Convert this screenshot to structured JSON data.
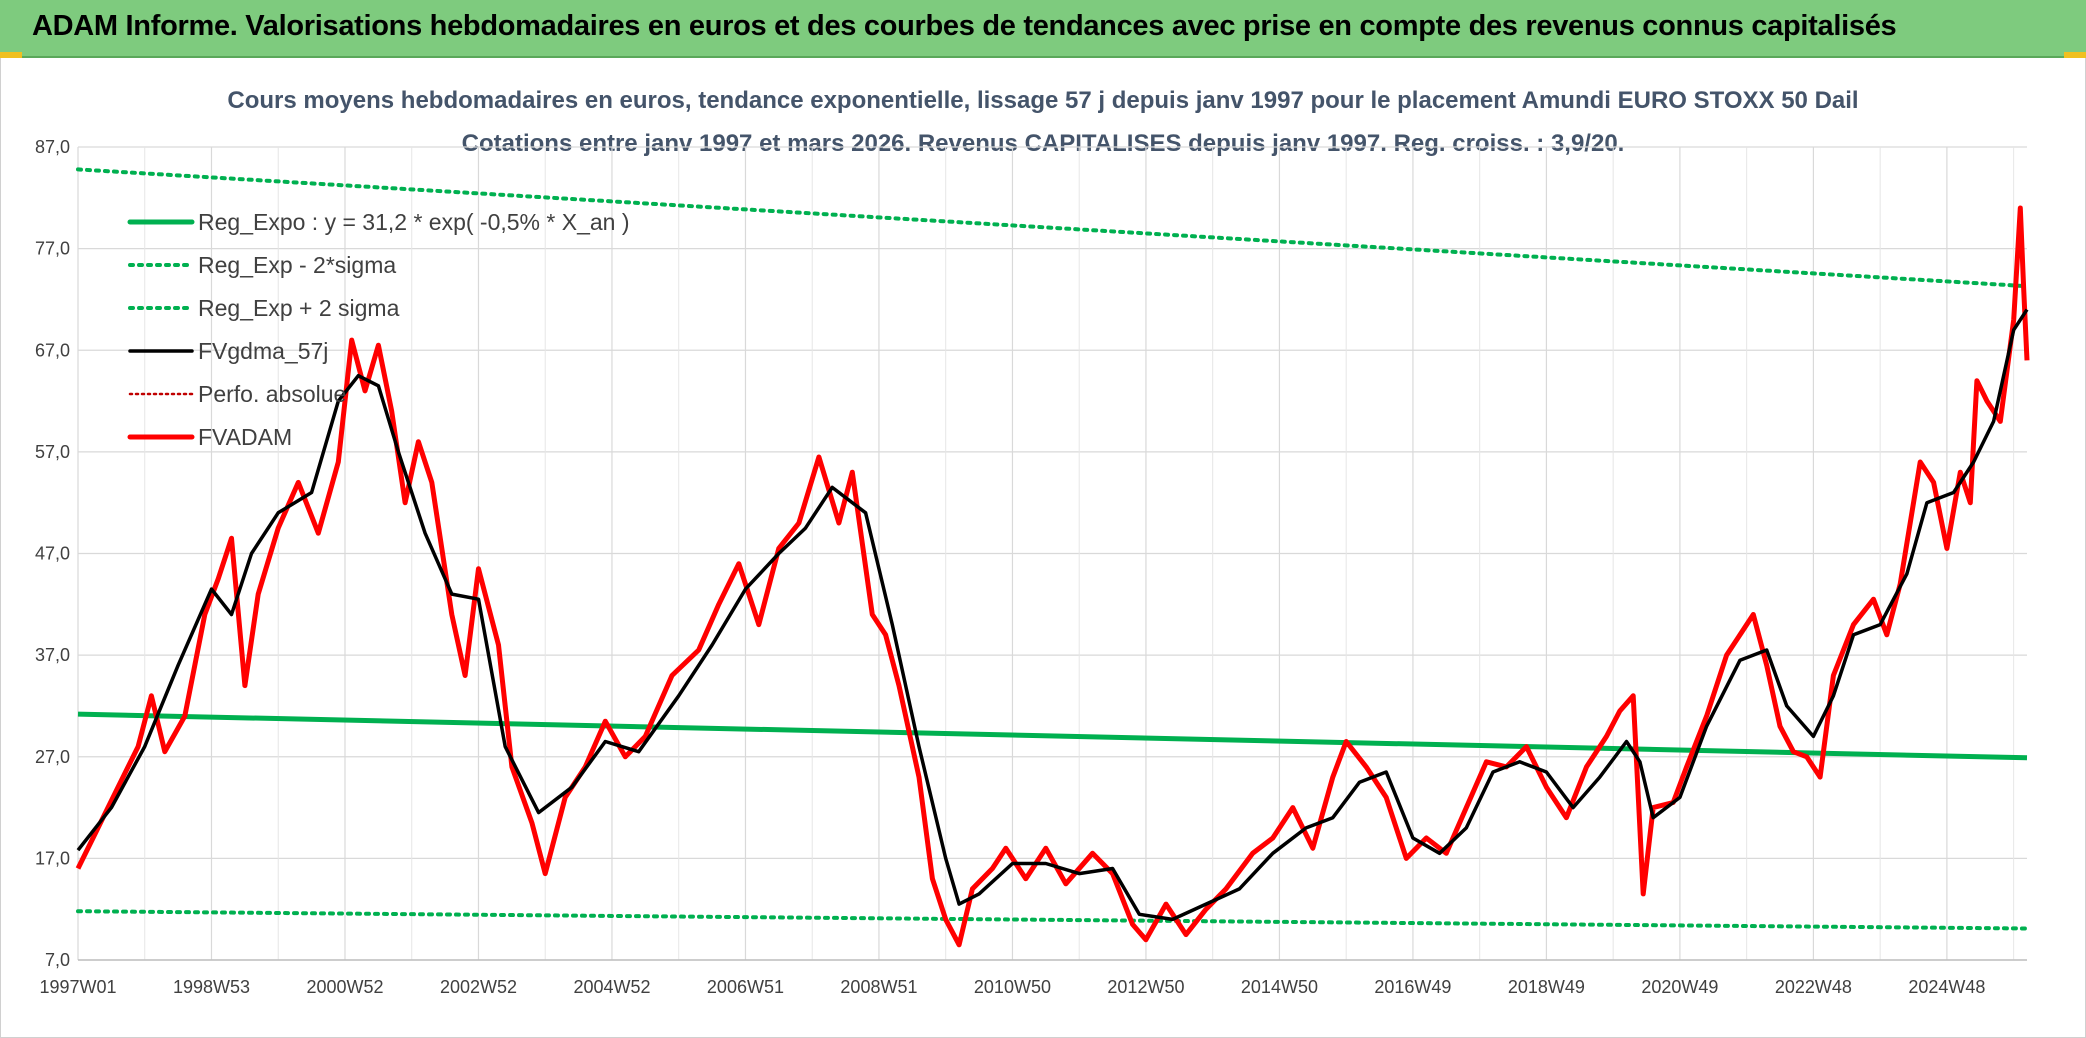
{
  "banner": {
    "title": "ADAM Informe. Valorisations hebdomadaires en euros et des courbes de tendances avec prise en compte des revenus connus capitalisés"
  },
  "colors": {
    "banner_bg": "#7ecb7e",
    "reg_expo": "#00b050",
    "fvgdma": "#000000",
    "perfo": "#c00000",
    "fvadam": "#ff0000"
  },
  "chart_data": {
    "type": "line",
    "title": "Cours moyens hebdomadaires en euros, tendance exponentielle, lissage 57 j depuis janv 1997 pour le placement Amundi EURO STOXX 50 Dail",
    "subtitle": "Cotations entre janv 1997 et mars 2026. Revenus CAPITALISES depuis janv 1997. Reg. croiss. : 3,9/20.",
    "xlabel": "",
    "ylabel": "",
    "x_range": [
      1997.0,
      2026.2
    ],
    "ylim": [
      7,
      87
    ],
    "y_ticks": [
      "87,0",
      "77,0",
      "67,0",
      "57,0",
      "47,0",
      "37,0",
      "27,0",
      "17,0",
      "7,0"
    ],
    "x_ticks": [
      {
        "label": "1997W01",
        "x": 1997.0
      },
      {
        "label": "1998W53",
        "x": 1999.0
      },
      {
        "label": "2000W52",
        "x": 2001.0
      },
      {
        "label": "2002W52",
        "x": 2003.0
      },
      {
        "label": "2004W52",
        "x": 2005.0
      },
      {
        "label": "2006W51",
        "x": 2007.0
      },
      {
        "label": "2008W51",
        "x": 2009.0
      },
      {
        "label": "2010W50",
        "x": 2011.0
      },
      {
        "label": "2012W50",
        "x": 2013.0
      },
      {
        "label": "2014W50",
        "x": 2015.0
      },
      {
        "label": "2016W49",
        "x": 2017.0
      },
      {
        "label": "2018W49",
        "x": 2019.0
      },
      {
        "label": "2020W49",
        "x": 2021.0
      },
      {
        "label": "2022W48",
        "x": 2023.0
      },
      {
        "label": "2024W48",
        "x": 2025.0
      }
    ],
    "grid": true,
    "legend_position": "top-left",
    "series": [
      {
        "name": "Reg_Expo : y = 31,2 * exp( -0,5% *  X_an )",
        "style": "solid-thick",
        "color": "#00b050",
        "points": [
          [
            1997.0,
            31.2
          ],
          [
            2026.2,
            26.9
          ]
        ]
      },
      {
        "name": "Reg_Exp - 2*sigma",
        "style": "dotted",
        "color": "#00b050",
        "points": [
          [
            1997.0,
            11.8
          ],
          [
            2026.2,
            10.1
          ]
        ]
      },
      {
        "name": "Reg_Exp + 2 sigma",
        "style": "dotted",
        "color": "#00b050",
        "points": [
          [
            1997.0,
            84.8
          ],
          [
            2026.2,
            73.3
          ]
        ]
      },
      {
        "name": "FVgdma_57j",
        "style": "solid",
        "color": "#000000",
        "points": [
          [
            1997.0,
            17.8
          ],
          [
            1997.5,
            22.0
          ],
          [
            1998.0,
            28.0
          ],
          [
            1998.5,
            36.0
          ],
          [
            1999.0,
            43.5
          ],
          [
            1999.3,
            41.0
          ],
          [
            1999.6,
            47.0
          ],
          [
            2000.0,
            51.0
          ],
          [
            2000.5,
            53.0
          ],
          [
            2000.9,
            62.0
          ],
          [
            2001.2,
            64.5
          ],
          [
            2001.5,
            63.5
          ],
          [
            2001.8,
            57.0
          ],
          [
            2002.2,
            49.0
          ],
          [
            2002.6,
            43.0
          ],
          [
            2003.0,
            42.5
          ],
          [
            2003.4,
            28.0
          ],
          [
            2003.9,
            21.5
          ],
          [
            2004.4,
            24.0
          ],
          [
            2004.9,
            28.5
          ],
          [
            2005.4,
            27.5
          ],
          [
            2006.0,
            33.0
          ],
          [
            2006.5,
            38.0
          ],
          [
            2007.0,
            43.5
          ],
          [
            2007.5,
            47.0
          ],
          [
            2007.9,
            49.5
          ],
          [
            2008.3,
            53.5
          ],
          [
            2008.8,
            51.0
          ],
          [
            2009.2,
            40.0
          ],
          [
            2009.6,
            28.0
          ],
          [
            2010.0,
            17.0
          ],
          [
            2010.2,
            12.5
          ],
          [
            2010.5,
            13.5
          ],
          [
            2011.0,
            16.5
          ],
          [
            2011.5,
            16.5
          ],
          [
            2012.0,
            15.5
          ],
          [
            2012.5,
            16.0
          ],
          [
            2012.9,
            11.5
          ],
          [
            2013.4,
            11.0
          ],
          [
            2013.9,
            12.5
          ],
          [
            2014.4,
            14.0
          ],
          [
            2014.9,
            17.5
          ],
          [
            2015.4,
            20.0
          ],
          [
            2015.8,
            21.0
          ],
          [
            2016.2,
            24.5
          ],
          [
            2016.6,
            25.5
          ],
          [
            2017.0,
            19.0
          ],
          [
            2017.4,
            17.5
          ],
          [
            2017.8,
            20.0
          ],
          [
            2018.2,
            25.5
          ],
          [
            2018.6,
            26.5
          ],
          [
            2019.0,
            25.5
          ],
          [
            2019.4,
            22.0
          ],
          [
            2019.8,
            25.0
          ],
          [
            2020.2,
            28.5
          ],
          [
            2020.4,
            26.5
          ],
          [
            2020.6,
            21.0
          ],
          [
            2021.0,
            23.0
          ],
          [
            2021.4,
            30.0
          ],
          [
            2021.9,
            36.5
          ],
          [
            2022.3,
            37.5
          ],
          [
            2022.6,
            32.0
          ],
          [
            2023.0,
            29.0
          ],
          [
            2023.3,
            33.0
          ],
          [
            2023.6,
            39.0
          ],
          [
            2024.0,
            40.0
          ],
          [
            2024.4,
            45.0
          ],
          [
            2024.7,
            52.0
          ],
          [
            2025.1,
            53.0
          ],
          [
            2025.4,
            56.0
          ],
          [
            2025.7,
            60.0
          ],
          [
            2026.0,
            69.0
          ],
          [
            2026.2,
            71.0
          ]
        ]
      },
      {
        "name": "Perfo. absolue",
        "style": "dotted",
        "color": "#c00000",
        "points": []
      },
      {
        "name": "FVADAM",
        "style": "solid-thick",
        "color": "#ff0000",
        "points": [
          [
            1997.0,
            16.0
          ],
          [
            1997.3,
            20.0
          ],
          [
            1997.6,
            24.0
          ],
          [
            1997.9,
            28.0
          ],
          [
            1998.1,
            33.0
          ],
          [
            1998.3,
            27.5
          ],
          [
            1998.6,
            31.0
          ],
          [
            1998.9,
            41.0
          ],
          [
            1999.1,
            44.5
          ],
          [
            1999.3,
            48.5
          ],
          [
            1999.5,
            34.0
          ],
          [
            1999.7,
            43.0
          ],
          [
            2000.0,
            49.5
          ],
          [
            2000.3,
            54.0
          ],
          [
            2000.6,
            49.0
          ],
          [
            2000.9,
            56.0
          ],
          [
            2001.1,
            68.0
          ],
          [
            2001.3,
            63.0
          ],
          [
            2001.5,
            67.5
          ],
          [
            2001.7,
            61.0
          ],
          [
            2001.9,
            52.0
          ],
          [
            2002.1,
            58.0
          ],
          [
            2002.3,
            54.0
          ],
          [
            2002.6,
            41.0
          ],
          [
            2002.8,
            35.0
          ],
          [
            2003.0,
            45.5
          ],
          [
            2003.3,
            38.0
          ],
          [
            2003.5,
            26.0
          ],
          [
            2003.8,
            20.5
          ],
          [
            2004.0,
            15.5
          ],
          [
            2004.3,
            23.0
          ],
          [
            2004.6,
            26.0
          ],
          [
            2004.9,
            30.5
          ],
          [
            2005.2,
            27.0
          ],
          [
            2005.5,
            29.0
          ],
          [
            2005.9,
            35.0
          ],
          [
            2006.3,
            37.5
          ],
          [
            2006.6,
            42.0
          ],
          [
            2006.9,
            46.0
          ],
          [
            2007.2,
            40.0
          ],
          [
            2007.5,
            47.5
          ],
          [
            2007.8,
            50.0
          ],
          [
            2008.1,
            56.5
          ],
          [
            2008.4,
            50.0
          ],
          [
            2008.6,
            55.0
          ],
          [
            2008.9,
            41.0
          ],
          [
            2009.1,
            39.0
          ],
          [
            2009.3,
            34.0
          ],
          [
            2009.6,
            25.0
          ],
          [
            2009.8,
            15.0
          ],
          [
            2010.0,
            11.0
          ],
          [
            2010.2,
            8.5
          ],
          [
            2010.4,
            14.0
          ],
          [
            2010.7,
            16.0
          ],
          [
            2010.9,
            18.0
          ],
          [
            2011.2,
            15.0
          ],
          [
            2011.5,
            18.0
          ],
          [
            2011.8,
            14.5
          ],
          [
            2012.2,
            17.5
          ],
          [
            2012.5,
            15.5
          ],
          [
            2012.8,
            10.5
          ],
          [
            2013.0,
            9.0
          ],
          [
            2013.3,
            12.5
          ],
          [
            2013.6,
            9.5
          ],
          [
            2013.9,
            12.0
          ],
          [
            2014.2,
            14.0
          ],
          [
            2014.6,
            17.5
          ],
          [
            2014.9,
            19.0
          ],
          [
            2015.2,
            22.0
          ],
          [
            2015.5,
            18.0
          ],
          [
            2015.8,
            25.0
          ],
          [
            2016.0,
            28.5
          ],
          [
            2016.3,
            26.0
          ],
          [
            2016.6,
            23.0
          ],
          [
            2016.9,
            17.0
          ],
          [
            2017.2,
            19.0
          ],
          [
            2017.5,
            17.5
          ],
          [
            2017.8,
            22.0
          ],
          [
            2018.1,
            26.5
          ],
          [
            2018.4,
            26.0
          ],
          [
            2018.7,
            28.0
          ],
          [
            2019.0,
            24.0
          ],
          [
            2019.3,
            21.0
          ],
          [
            2019.6,
            26.0
          ],
          [
            2019.9,
            29.0
          ],
          [
            2020.1,
            31.5
          ],
          [
            2020.3,
            33.0
          ],
          [
            2020.45,
            13.5
          ],
          [
            2020.6,
            22.0
          ],
          [
            2020.9,
            22.5
          ],
          [
            2021.1,
            26.0
          ],
          [
            2021.4,
            31.0
          ],
          [
            2021.7,
            37.0
          ],
          [
            2021.9,
            39.0
          ],
          [
            2022.1,
            41.0
          ],
          [
            2022.3,
            36.0
          ],
          [
            2022.5,
            30.0
          ],
          [
            2022.7,
            27.5
          ],
          [
            2022.9,
            27.0
          ],
          [
            2023.1,
            25.0
          ],
          [
            2023.3,
            35.0
          ],
          [
            2023.6,
            40.0
          ],
          [
            2023.9,
            42.5
          ],
          [
            2024.1,
            39.0
          ],
          [
            2024.3,
            44.0
          ],
          [
            2024.6,
            56.0
          ],
          [
            2024.8,
            54.0
          ],
          [
            2025.0,
            47.5
          ],
          [
            2025.2,
            55.0
          ],
          [
            2025.35,
            52.0
          ],
          [
            2025.45,
            64.0
          ],
          [
            2025.6,
            62.0
          ],
          [
            2025.8,
            60.0
          ],
          [
            2026.0,
            70.0
          ],
          [
            2026.1,
            81.0
          ],
          [
            2026.15,
            73.0
          ],
          [
            2026.2,
            66.0
          ]
        ]
      }
    ]
  }
}
